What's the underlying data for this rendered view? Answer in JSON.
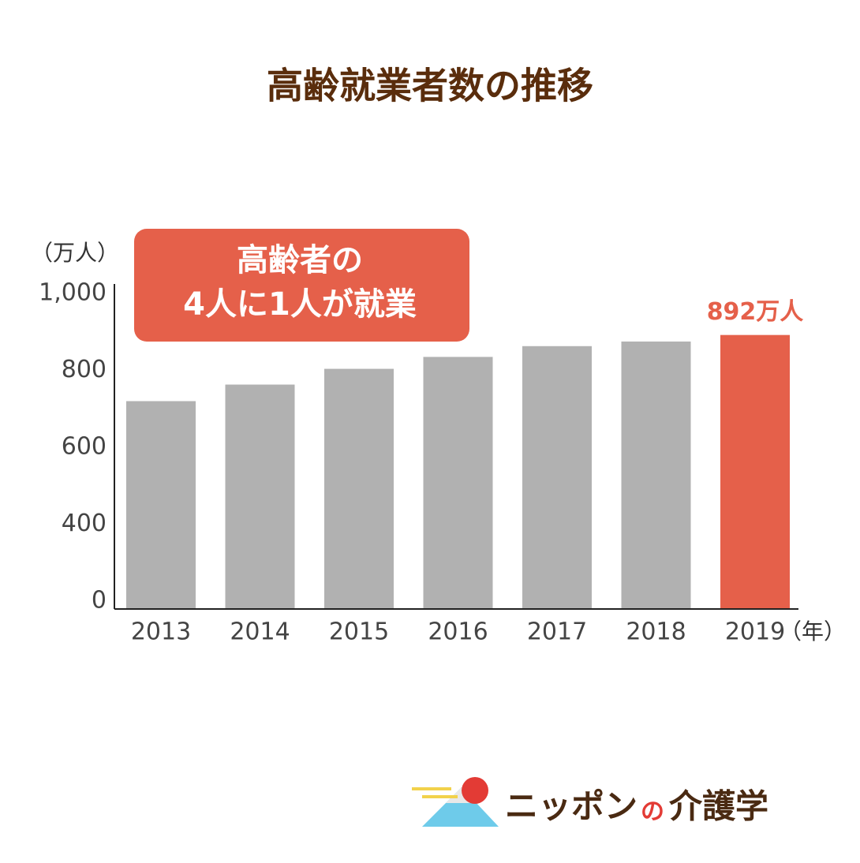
{
  "chart_data": {
    "type": "bar",
    "title": "高齢就業者数の推移",
    "y_label": "（万人）",
    "x_label": "（年）",
    "annotation": [
      "高齢者の",
      "4人に1人が就業"
    ],
    "categories": [
      "2013",
      "2014",
      "2015",
      "2016",
      "2017",
      "2018",
      "2019"
    ],
    "values": [
      720,
      763,
      804,
      835,
      863,
      875,
      892
    ],
    "value_labels": [
      null,
      null,
      null,
      null,
      null,
      null,
      "892万人"
    ],
    "colors": [
      "#b1b1b1",
      "#b1b1b1",
      "#b1b1b1",
      "#b1b1b1",
      "#b1b1b1",
      "#b1b1b1",
      "#e5604a"
    ],
    "ylim": [
      0,
      1000
    ],
    "yticks": [
      0,
      400,
      600,
      800,
      {
        "value": 1000,
        "label": "1,000"
      }
    ]
  },
  "logo": [
    "ニッポン",
    "の",
    "介護学"
  ]
}
